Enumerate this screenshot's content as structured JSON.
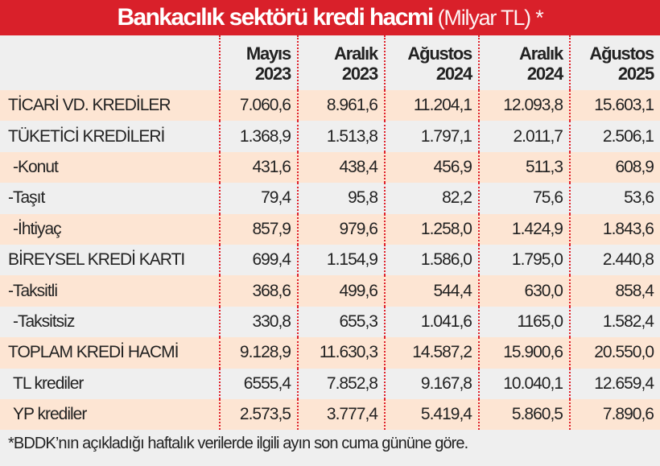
{
  "title": {
    "main": "Bankacılık sektörü kredi hacmi",
    "sub": "(Milyar TL) *"
  },
  "colors": {
    "title_bg": "#d9202a",
    "row_alt": "#fde5d3",
    "row_base": "#efefef",
    "divider": "#e0222b"
  },
  "chart_data": {
    "type": "table",
    "title": "Bankacılık sektörü kredi hacmi (Milyar TL) *",
    "columns": [
      {
        "month": "Mayıs",
        "year": "2023"
      },
      {
        "month": "Aralık",
        "year": "2023"
      },
      {
        "month": "Ağustos",
        "year": "2024"
      },
      {
        "month": "Aralık",
        "year": "2024"
      },
      {
        "month": "Ağustos",
        "year": "2025"
      }
    ],
    "rows": [
      {
        "label": "TİCARİ VD. KREDİLER",
        "values": [
          "7.060,6",
          "8.961,6",
          "11.204,1",
          "12.093,8",
          "15.603,1"
        ]
      },
      {
        "label": "TÜKETİCİ KREDİLERİ",
        "values": [
          "1.368,9",
          "1.513,8",
          "1.797,1",
          "2.011,7",
          "2.506,1"
        ]
      },
      {
        "label": "-Konut",
        "values": [
          "431,6",
          "438,4",
          "456,9",
          "511,3",
          "608,9"
        ]
      },
      {
        "label": "-Taşıt",
        "values": [
          "79,4",
          "95,8",
          "82,2",
          "75,6",
          "53,6"
        ]
      },
      {
        "label": "-İhtiyaç",
        "values": [
          "857,9",
          "979,6",
          "1.258,0",
          "1.424,9",
          "1.843,6"
        ]
      },
      {
        "label": "BİREYSEL KREDİ KARTI",
        "values": [
          "699,4",
          "1.154,9",
          "1.586,0",
          "1.795,0",
          "2.440,8"
        ]
      },
      {
        "label": "-Taksitli",
        "values": [
          "368,6",
          "499,6",
          "544,4",
          "630,0",
          "858,4"
        ]
      },
      {
        "label": "-Taksitsiz",
        "values": [
          "330,8",
          "655,3",
          "1.041,6",
          "1165,0",
          "1.582,4"
        ]
      },
      {
        "label": "TOPLAM KREDİ HACMİ",
        "values": [
          "9.128,9",
          "11.630,3",
          "14.587,2",
          "15.900,6",
          "20.550,0"
        ]
      },
      {
        "label": "TL krediler",
        "values": [
          "6555,4",
          "7.852,8",
          "9.167,8",
          "10.040,1",
          "12.659,4"
        ]
      },
      {
        "label": "YP krediler",
        "values": [
          "2.573,5",
          "3.777,4",
          "5.419,4",
          "5.860,5",
          "7.890,6"
        ]
      }
    ]
  },
  "footnote": "*BDDK’nın açıkladığı haftalık verilerde ilgili ayın son cuma gününe göre."
}
